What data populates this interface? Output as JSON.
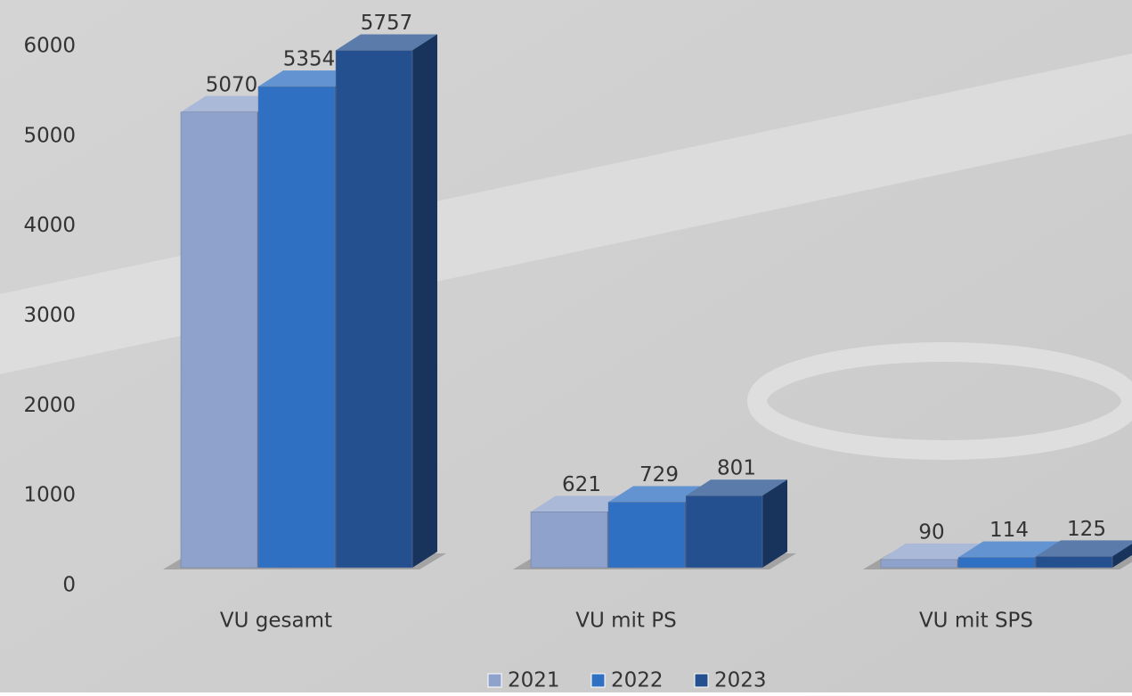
{
  "chart_data": {
    "type": "bar3d",
    "categories": [
      "VU gesamt",
      "VU mit PS",
      "VU mit SPS"
    ],
    "series": [
      {
        "name": "2021",
        "color": "#8fa2cc",
        "values": [
          5070,
          621,
          90
        ]
      },
      {
        "name": "2022",
        "color": "#2f70c2",
        "values": [
          5354,
          729,
          114
        ]
      },
      {
        "name": "2023",
        "color": "#25508f",
        "values": [
          5757,
          801,
          125
        ]
      }
    ],
    "ylim": [
      0,
      6000
    ],
    "yticks": [
      0,
      1000,
      2000,
      3000,
      4000,
      5000,
      6000
    ],
    "grid": false,
    "legend": "bottom"
  }
}
